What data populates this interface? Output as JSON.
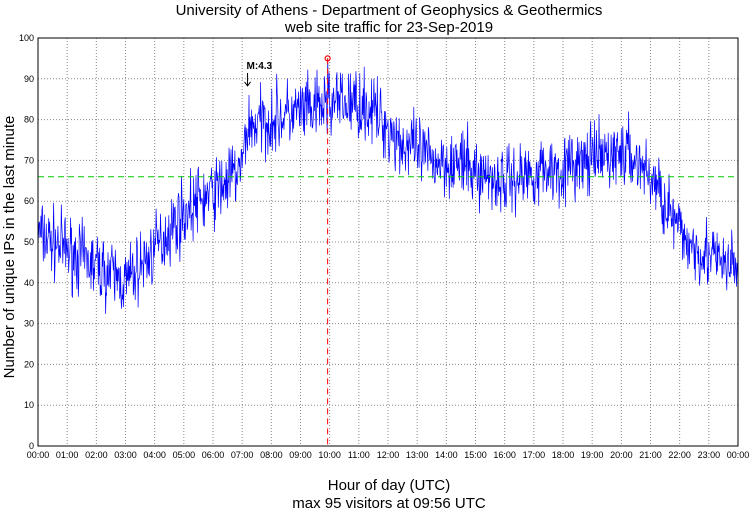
{
  "chart_data": {
    "type": "line",
    "title": "University of Athens - Department of Geophysics & Geothermics",
    "subtitle": "web site traffic for 23-Sep-2019",
    "xlabel": "Hour of day (UTC)",
    "ylabel": "Number of unique IPs in the last minute",
    "footer": "max 95 visitors at 09:56 UTC",
    "xlim": [
      0,
      24
    ],
    "ylim": [
      0,
      100
    ],
    "yticks": [
      0,
      10,
      20,
      30,
      40,
      50,
      60,
      70,
      80,
      90,
      100
    ],
    "xtick_labels": [
      "00:00",
      "01:00",
      "02:00",
      "03:00",
      "04:00",
      "05:00",
      "06:00",
      "07:00",
      "08:00",
      "09:00",
      "10:00",
      "11:00",
      "12:00",
      "13:00",
      "14:00",
      "15:00",
      "16:00",
      "17:00",
      "18:00",
      "19:00",
      "20:00",
      "21:00",
      "22:00",
      "23:00",
      "00:00"
    ],
    "grid": true,
    "series": [
      {
        "color": "#0000ff",
        "x": [
          0,
          0.5,
          1,
          1.5,
          2,
          2.5,
          3,
          3.5,
          4,
          4.5,
          5,
          5.5,
          6,
          6.5,
          7,
          7.15,
          7.5,
          8,
          8.5,
          9,
          9.5,
          9.93,
          10.5,
          11,
          11.5,
          12,
          12.5,
          13,
          13.5,
          14,
          14.5,
          15,
          15.5,
          16,
          16.5,
          17,
          17.5,
          18,
          18.5,
          19,
          19.5,
          20,
          20.5,
          21,
          21.5,
          22,
          22.5,
          23,
          23.5,
          24
        ],
        "y": [
          52,
          50,
          48,
          46,
          44,
          42,
          40,
          44,
          48,
          53,
          57,
          60,
          62,
          65,
          68,
          78,
          79,
          80,
          81,
          82,
          82,
          84,
          84,
          84,
          82,
          78,
          74,
          72,
          70,
          70,
          69,
          67,
          66,
          65,
          66,
          67,
          68,
          68,
          69,
          70,
          71,
          72,
          70,
          66,
          60,
          52,
          49,
          47,
          44,
          44
        ],
        "noise": 6
      }
    ],
    "mean_line": {
      "value": 66,
      "color": "#00cc00"
    },
    "max_marker": {
      "x": 9.93,
      "y": 95,
      "color": "#ff0000"
    },
    "annotation": {
      "text": "M:4.3",
      "x": 7.15,
      "y": 88
    }
  }
}
